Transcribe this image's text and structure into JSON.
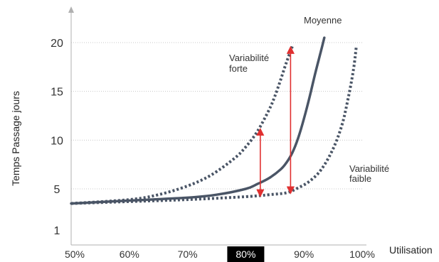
{
  "chart_data": {
    "type": "line",
    "xlabel": "Utilisation",
    "ylabel": "Temps Passage jours",
    "x_tick_labels": [
      "50%",
      "60%",
      "70%",
      "80%",
      "90%",
      "100%"
    ],
    "x_ticks": [
      50,
      60,
      70,
      80,
      90,
      100
    ],
    "highlighted_x_tick": "80%",
    "y_tick_labels": [
      "1",
      "5",
      "10",
      "15",
      "20"
    ],
    "y_ticks": [
      1,
      5,
      10,
      15,
      20
    ],
    "xlim": [
      50,
      100
    ],
    "ylim": [
      0,
      22
    ],
    "grid": "horizontal dotted",
    "series": [
      {
        "name": "Moyenne",
        "style": "solid",
        "color": "#4a5566",
        "x": [
          50,
          60,
          70,
          75,
          80,
          82,
          84,
          86,
          87,
          88,
          89,
          90,
          91,
          92,
          93,
          93.5
        ],
        "y": [
          3.5,
          3.8,
          4.1,
          4.4,
          5.0,
          5.5,
          6.1,
          7.0,
          7.7,
          8.7,
          10.2,
          12.2,
          14.5,
          17.0,
          19.3,
          20.5
        ]
      },
      {
        "name": "Variabilité forte",
        "style": "dotted",
        "color": "#4a5566",
        "x": [
          50,
          60,
          65,
          70,
          74,
          78,
          80,
          82,
          84,
          85,
          86,
          87,
          88
        ],
        "y": [
          3.5,
          3.9,
          4.4,
          5.3,
          6.4,
          8.1,
          9.3,
          10.9,
          13.1,
          14.5,
          16.2,
          18.0,
          19.6
        ]
      },
      {
        "name": "Variabilité faible",
        "style": "dotted",
        "color": "#4a5566",
        "x": [
          50,
          60,
          70,
          80,
          84,
          87,
          89,
          91,
          93,
          95,
          96.5,
          97.5,
          98.5,
          99
        ],
        "y": [
          3.5,
          3.7,
          3.9,
          4.2,
          4.4,
          4.6,
          5.1,
          5.8,
          7.0,
          9.1,
          11.5,
          14.0,
          17.2,
          19.6
        ]
      }
    ],
    "arrows": [
      {
        "color": "#e03030",
        "x": 82.5,
        "y_from": 4.3,
        "y_to": 11.1
      },
      {
        "color": "#e03030",
        "x": 87.7,
        "y_from": 4.6,
        "y_to": 19.5
      }
    ],
    "annotations": {
      "moyenne": "Moyenne",
      "forte_line1": "Variabilité",
      "forte_line2": "forte",
      "faible_line1": "Variabilité",
      "faible_line2": "faible"
    }
  }
}
